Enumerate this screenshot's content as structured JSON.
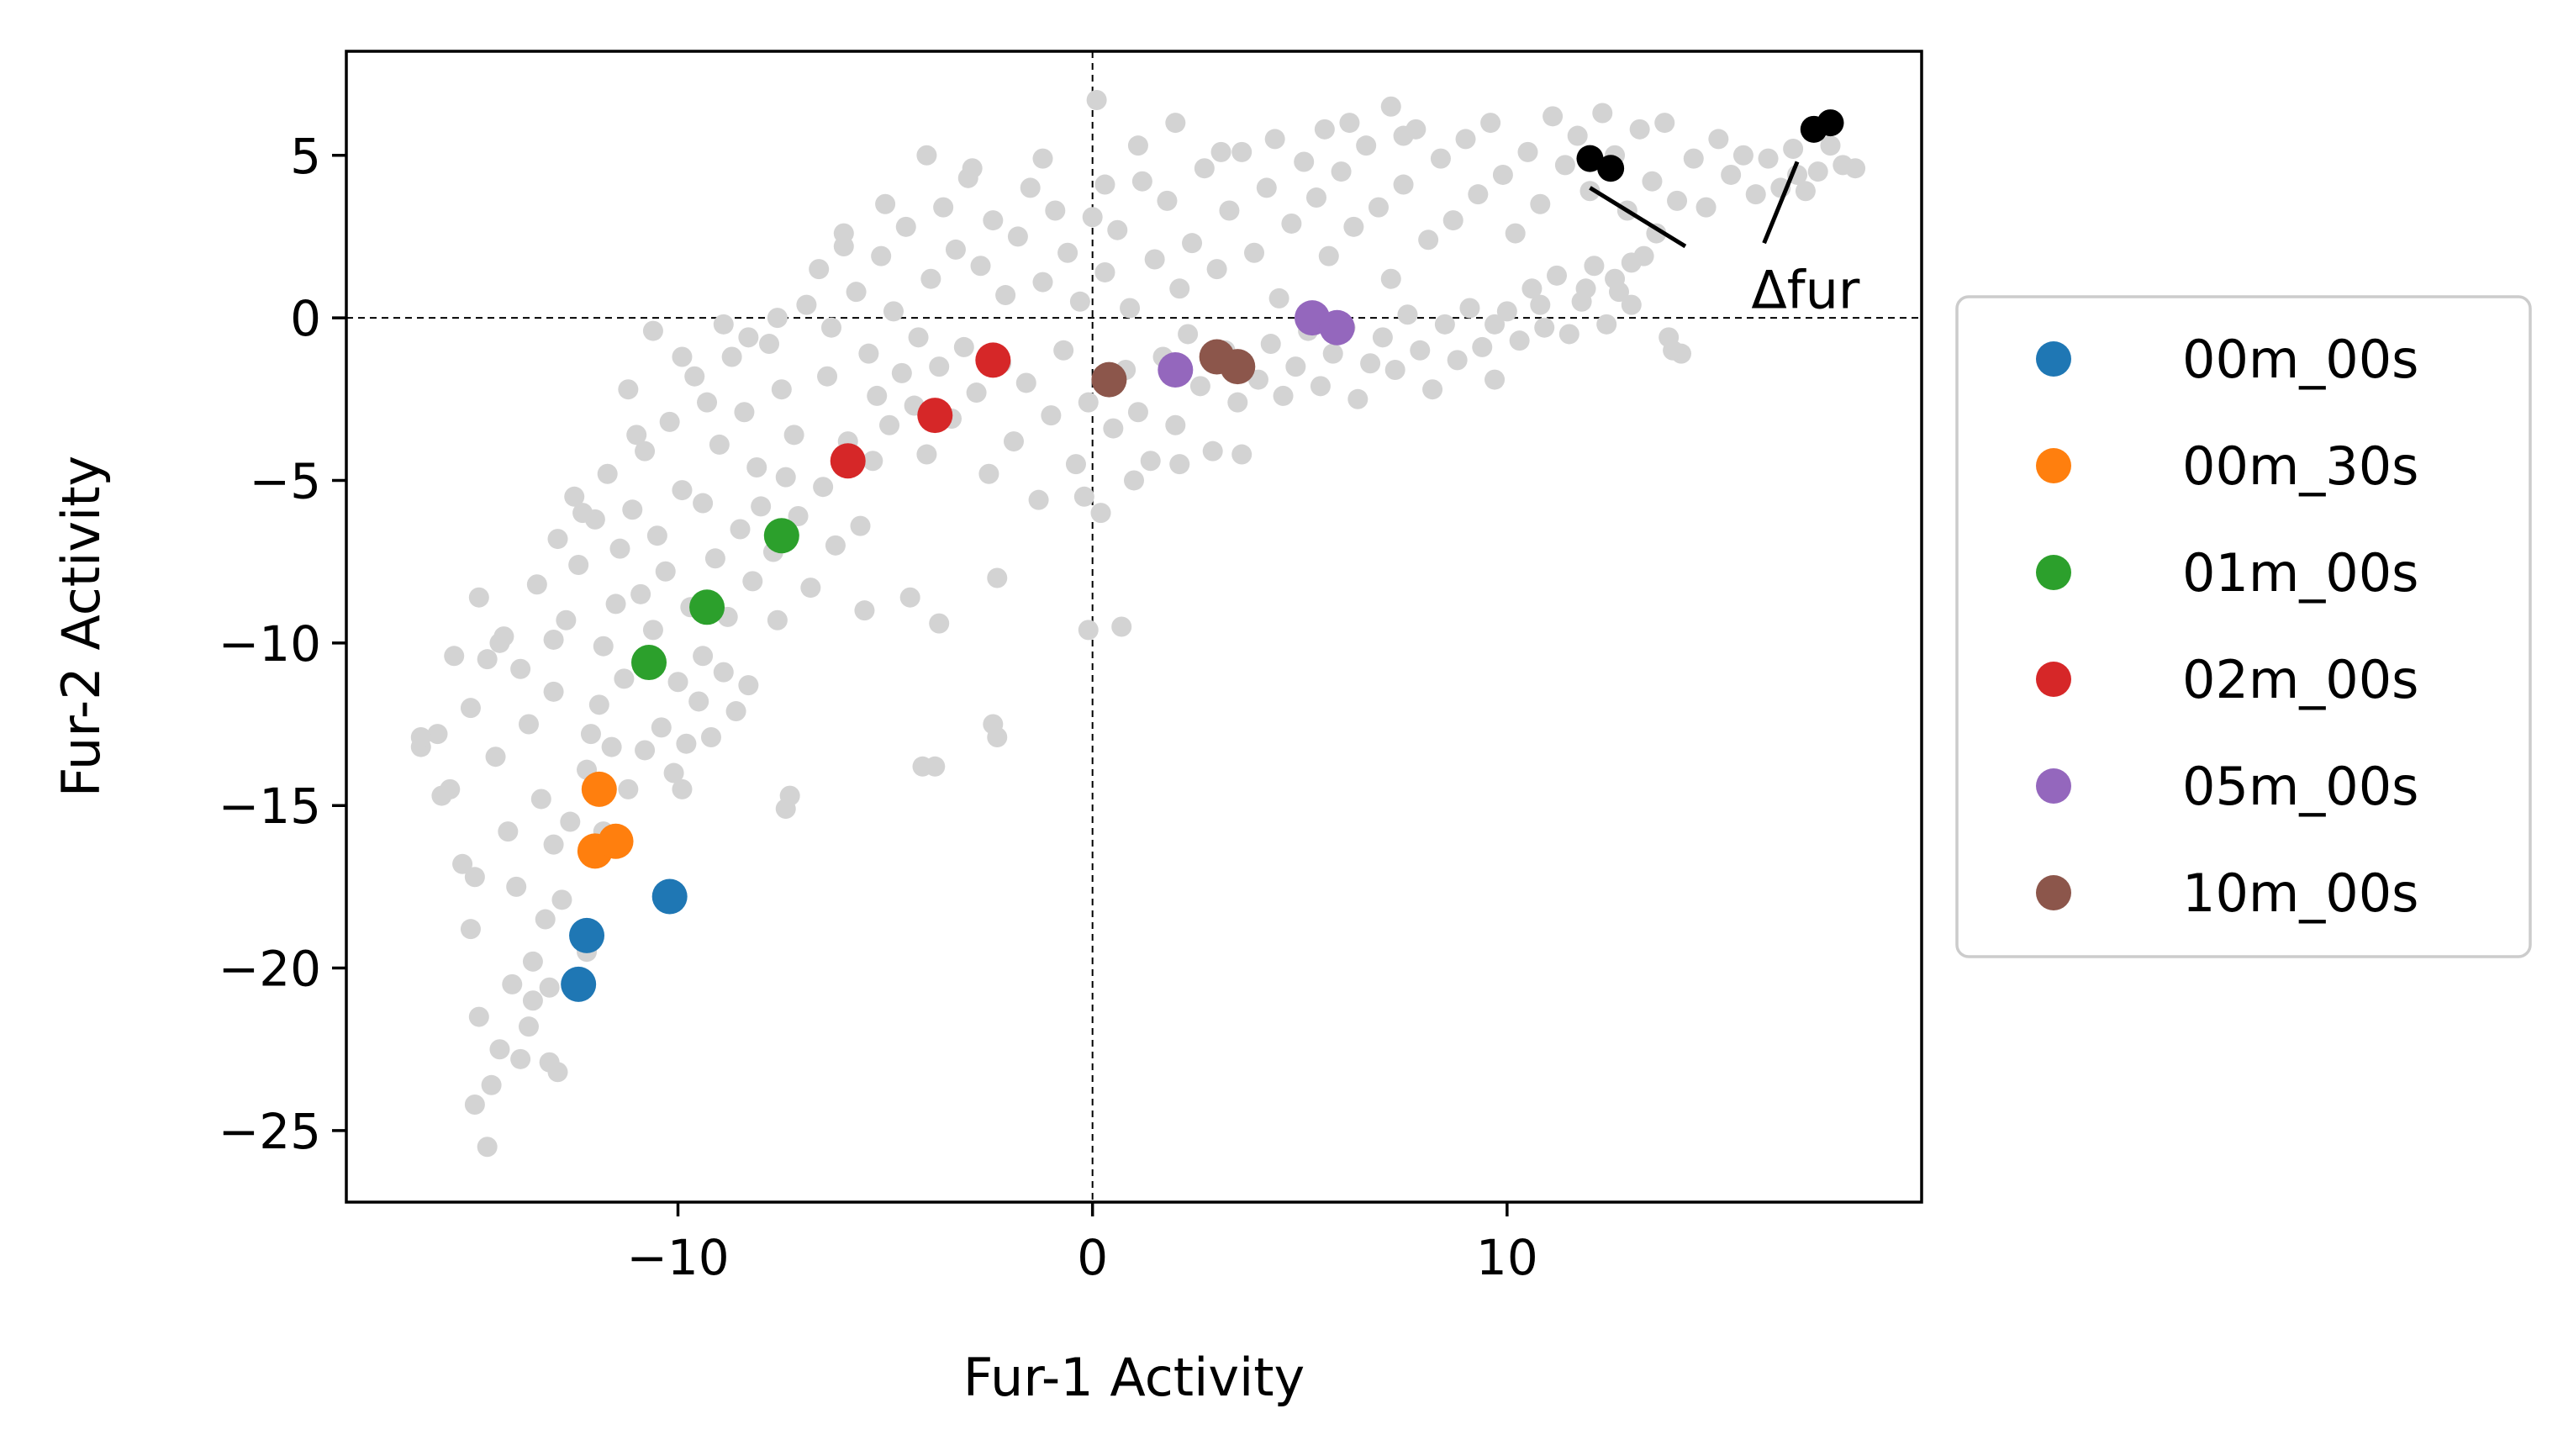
{
  "chart_data": {
    "type": "scatter",
    "title": "",
    "xlabel": "Fur-1 Activity",
    "ylabel": "Fur-2 Activity",
    "xlim": [
      -18,
      20
    ],
    "ylim": [
      -27.2,
      8.2
    ],
    "x_ticks": [
      -10,
      0,
      10
    ],
    "y_ticks": [
      5,
      0,
      -5,
      -10,
      -15,
      -20,
      -25
    ],
    "x_tick_labels": [
      "−10",
      "0",
      "10"
    ],
    "y_tick_labels": [
      "5",
      "0",
      "−5",
      "−10",
      "−15",
      "−20",
      "−25"
    ],
    "reference_lines": {
      "x": 0,
      "y": 0,
      "style": "dashed"
    },
    "grid": false,
    "legend_position": "right",
    "background": {
      "color": "#d3d3d3",
      "points": [
        [
          -16.2,
          -13.2
        ],
        [
          -15.8,
          -12.8
        ],
        [
          -15.5,
          -14.5
        ],
        [
          -15.2,
          -16.8
        ],
        [
          -15.0,
          -18.8
        ],
        [
          -14.8,
          -21.5
        ],
        [
          -14.5,
          -23.6
        ],
        [
          -14.3,
          -22.5
        ],
        [
          -14.0,
          -20.5
        ],
        [
          -13.8,
          -22.8
        ],
        [
          -13.5,
          -19.8
        ],
        [
          -13.2,
          -18.5
        ],
        [
          -15.0,
          -12.0
        ],
        [
          -14.6,
          -10.5
        ],
        [
          -14.4,
          -13.5
        ],
        [
          -14.1,
          -15.8
        ],
        [
          -13.9,
          -17.5
        ],
        [
          -13.6,
          -12.5
        ],
        [
          -13.3,
          -14.8
        ],
        [
          -13.0,
          -16.2
        ],
        [
          -14.8,
          -8.6
        ],
        [
          -14.2,
          -9.8
        ],
        [
          -13.8,
          -10.8
        ],
        [
          -13.4,
          -8.2
        ],
        [
          -13.0,
          -11.5
        ],
        [
          -12.7,
          -9.3
        ],
        [
          -12.4,
          -7.6
        ],
        [
          -12.1,
          -12.8
        ],
        [
          -11.8,
          -10.1
        ],
        [
          -11.5,
          -8.8
        ],
        [
          -14.6,
          -25.5
        ],
        [
          -14.9,
          -24.2
        ],
        [
          -13.6,
          -21.8
        ],
        [
          -13.1,
          -20.6
        ],
        [
          -12.8,
          -17.9
        ],
        [
          -12.6,
          -15.5
        ],
        [
          -12.2,
          -13.9
        ],
        [
          -11.9,
          -11.9
        ],
        [
          -11.6,
          -13.2
        ],
        [
          -11.3,
          -11.1
        ],
        [
          -12.9,
          -6.8
        ],
        [
          -12.5,
          -5.5
        ],
        [
          -12.0,
          -6.2
        ],
        [
          -11.7,
          -4.8
        ],
        [
          -11.4,
          -7.1
        ],
        [
          -11.1,
          -5.9
        ],
        [
          -10.8,
          -4.1
        ],
        [
          -10.5,
          -6.7
        ],
        [
          -10.2,
          -3.2
        ],
        [
          -9.9,
          -5.3
        ],
        [
          -10.9,
          -8.5
        ],
        [
          -10.6,
          -9.6
        ],
        [
          -10.3,
          -7.8
        ],
        [
          -10.0,
          -11.2
        ],
        [
          -9.7,
          -8.9
        ],
        [
          -9.4,
          -10.4
        ],
        [
          -9.1,
          -7.4
        ],
        [
          -8.8,
          -9.2
        ],
        [
          -8.5,
          -6.5
        ],
        [
          -8.2,
          -8.1
        ],
        [
          -11.2,
          -14.5
        ],
        [
          -10.8,
          -13.3
        ],
        [
          -10.4,
          -12.6
        ],
        [
          -10.1,
          -14.0
        ],
        [
          -9.8,
          -13.1
        ],
        [
          -9.5,
          -11.8
        ],
        [
          -9.2,
          -12.9
        ],
        [
          -8.9,
          -10.9
        ],
        [
          -8.6,
          -12.1
        ],
        [
          -8.3,
          -11.3
        ],
        [
          -9.6,
          -1.8
        ],
        [
          -9.3,
          -2.6
        ],
        [
          -9.0,
          -3.9
        ],
        [
          -8.7,
          -1.2
        ],
        [
          -8.4,
          -2.9
        ],
        [
          -8.1,
          -4.6
        ],
        [
          -7.8,
          -0.8
        ],
        [
          -7.5,
          -2.2
        ],
        [
          -7.2,
          -3.6
        ],
        [
          -6.9,
          0.4
        ],
        [
          -8.0,
          -5.8
        ],
        [
          -7.7,
          -7.2
        ],
        [
          -7.4,
          -4.9
        ],
        [
          -7.1,
          -6.1
        ],
        [
          -6.8,
          -8.3
        ],
        [
          -6.5,
          -5.2
        ],
        [
          -6.2,
          -7.0
        ],
        [
          -5.9,
          -3.8
        ],
        [
          -5.6,
          -6.4
        ],
        [
          -5.3,
          -4.4
        ],
        [
          -6.6,
          1.5
        ],
        [
          -6.3,
          -0.3
        ],
        [
          -6.0,
          2.2
        ],
        [
          -5.7,
          0.8
        ],
        [
          -5.4,
          -1.1
        ],
        [
          -5.1,
          1.9
        ],
        [
          -4.8,
          0.2
        ],
        [
          -4.5,
          2.8
        ],
        [
          -4.2,
          -0.6
        ],
        [
          -3.9,
          1.2
        ],
        [
          -5.2,
          -2.4
        ],
        [
          -4.9,
          -3.3
        ],
        [
          -4.6,
          -1.7
        ],
        [
          -4.3,
          -2.7
        ],
        [
          -4.0,
          -4.2
        ],
        [
          -3.7,
          -1.5
        ],
        [
          -3.4,
          -3.1
        ],
        [
          -3.1,
          -0.9
        ],
        [
          -2.8,
          -2.3
        ],
        [
          -2.5,
          -4.8
        ],
        [
          -3.6,
          3.4
        ],
        [
          -3.3,
          2.1
        ],
        [
          -3.0,
          4.3
        ],
        [
          -2.7,
          1.6
        ],
        [
          -2.4,
          3.0
        ],
        [
          -2.1,
          0.7
        ],
        [
          -1.8,
          2.5
        ],
        [
          -1.5,
          4.0
        ],
        [
          -1.2,
          1.1
        ],
        [
          -0.9,
          3.3
        ],
        [
          -2.2,
          -1.4
        ],
        [
          -1.9,
          -3.8
        ],
        [
          -1.6,
          -2.0
        ],
        [
          -1.3,
          -5.6
        ],
        [
          -1.0,
          -3.0
        ],
        [
          -0.7,
          -1.0
        ],
        [
          -0.4,
          -4.5
        ],
        [
          -0.1,
          -2.6
        ],
        [
          0.2,
          -6.0
        ],
        [
          0.5,
          -3.4
        ],
        [
          -0.6,
          2.0
        ],
        [
          -0.3,
          0.5
        ],
        [
          0.0,
          3.1
        ],
        [
          0.3,
          1.4
        ],
        [
          0.6,
          2.7
        ],
        [
          0.9,
          0.3
        ],
        [
          1.2,
          4.2
        ],
        [
          1.5,
          1.8
        ],
        [
          1.8,
          3.6
        ],
        [
          2.1,
          0.9
        ],
        [
          0.8,
          -1.6
        ],
        [
          1.1,
          -2.9
        ],
        [
          1.4,
          -4.4
        ],
        [
          1.7,
          -1.2
        ],
        [
          2.0,
          -3.3
        ],
        [
          2.3,
          -0.5
        ],
        [
          2.6,
          -2.1
        ],
        [
          2.9,
          -4.1
        ],
        [
          3.2,
          -1.0
        ],
        [
          3.5,
          -2.6
        ],
        [
          2.4,
          2.3
        ],
        [
          2.7,
          4.6
        ],
        [
          3.0,
          1.5
        ],
        [
          3.3,
          3.3
        ],
        [
          3.6,
          5.1
        ],
        [
          3.9,
          2.0
        ],
        [
          4.2,
          4.0
        ],
        [
          4.5,
          0.6
        ],
        [
          4.8,
          2.9
        ],
        [
          5.1,
          4.8
        ],
        [
          4.0,
          -1.9
        ],
        [
          4.3,
          -0.8
        ],
        [
          4.6,
          -2.4
        ],
        [
          4.9,
          -1.5
        ],
        [
          5.2,
          -0.4
        ],
        [
          5.5,
          -2.1
        ],
        [
          5.8,
          -1.1
        ],
        [
          6.1,
          -0.3
        ],
        [
          6.4,
          -2.5
        ],
        [
          6.7,
          -1.4
        ],
        [
          5.4,
          3.7
        ],
        [
          5.7,
          1.9
        ],
        [
          6.0,
          4.5
        ],
        [
          6.3,
          2.8
        ],
        [
          6.6,
          5.3
        ],
        [
          6.9,
          3.4
        ],
        [
          7.2,
          1.2
        ],
        [
          7.5,
          4.1
        ],
        [
          7.8,
          5.8
        ],
        [
          8.1,
          2.4
        ],
        [
          7.0,
          -0.6
        ],
        [
          7.3,
          -1.6
        ],
        [
          7.6,
          0.1
        ],
        [
          7.9,
          -1.0
        ],
        [
          8.2,
          -2.2
        ],
        [
          8.5,
          -0.2
        ],
        [
          8.8,
          -1.3
        ],
        [
          9.1,
          0.3
        ],
        [
          9.4,
          -0.9
        ],
        [
          9.7,
          -1.9
        ],
        [
          8.4,
          4.9
        ],
        [
          8.7,
          3.0
        ],
        [
          9.0,
          5.5
        ],
        [
          9.3,
          3.8
        ],
        [
          9.6,
          6.0
        ],
        [
          9.9,
          4.4
        ],
        [
          10.2,
          2.6
        ],
        [
          10.5,
          5.1
        ],
        [
          10.8,
          3.5
        ],
        [
          11.1,
          6.2
        ],
        [
          10.0,
          0.2
        ],
        [
          10.3,
          -0.7
        ],
        [
          10.6,
          0.9
        ],
        [
          10.9,
          -0.3
        ],
        [
          11.2,
          1.3
        ],
        [
          11.5,
          -0.5
        ],
        [
          11.8,
          0.5
        ],
        [
          12.1,
          1.6
        ],
        [
          12.4,
          -0.2
        ],
        [
          12.7,
          0.8
        ],
        [
          11.4,
          4.7
        ],
        [
          11.7,
          5.6
        ],
        [
          12.0,
          3.9
        ],
        [
          12.3,
          6.3
        ],
        [
          12.6,
          5.0
        ],
        [
          12.9,
          3.3
        ],
        [
          13.2,
          5.8
        ],
        [
          13.5,
          4.2
        ],
        [
          13.8,
          6.0
        ],
        [
          14.1,
          3.6
        ],
        [
          13.0,
          0.4
        ],
        [
          13.3,
          1.9
        ],
        [
          13.6,
          2.6
        ],
        [
          13.9,
          -0.6
        ],
        [
          14.2,
          -1.1
        ],
        [
          14.5,
          4.9
        ],
        [
          14.8,
          3.4
        ],
        [
          15.1,
          5.5
        ],
        [
          15.4,
          4.4
        ],
        [
          15.7,
          5.0
        ],
        [
          16.0,
          3.8
        ],
        [
          16.3,
          4.9
        ],
        [
          16.6,
          4.0
        ],
        [
          16.9,
          5.2
        ],
        [
          17.2,
          3.9
        ],
        [
          17.5,
          4.5
        ],
        [
          17.8,
          5.3
        ],
        [
          18.1,
          4.7
        ],
        [
          18.4,
          4.6
        ],
        [
          17.0,
          4.4
        ],
        [
          -15.4,
          -10.4
        ],
        [
          -13.0,
          -9.9
        ],
        [
          -12.3,
          -6.0
        ],
        [
          -11.0,
          -3.6
        ],
        [
          -9.4,
          -5.7
        ],
        [
          -8.9,
          -0.2
        ],
        [
          -7.6,
          -9.3
        ],
        [
          -6.4,
          -1.8
        ],
        [
          -5.5,
          -9.0
        ],
        [
          -4.4,
          -8.6
        ],
        [
          -3.7,
          -9.4
        ],
        [
          -2.3,
          -8.0
        ],
        [
          -2.4,
          -12.5
        ],
        [
          -2.3,
          -12.9
        ],
        [
          -3.8,
          -13.8
        ],
        [
          -4.1,
          -13.8
        ],
        [
          -7.3,
          -14.7
        ],
        [
          -7.4,
          -15.1
        ],
        [
          -0.1,
          -9.6
        ],
        [
          0.7,
          -9.5
        ],
        [
          -9.9,
          -14.5
        ],
        [
          -12.2,
          -19.5
        ],
        [
          -13.5,
          -21.0
        ],
        [
          -14.9,
          -17.2
        ],
        [
          -16.2,
          -12.9
        ],
        [
          -11.8,
          -15.8
        ],
        [
          -12.9,
          -23.2
        ],
        [
          -13.1,
          -22.9
        ],
        [
          -15.7,
          -14.7
        ],
        [
          -14.3,
          -10.0
        ],
        [
          -1.2,
          4.9
        ],
        [
          -2.9,
          4.6
        ],
        [
          -4.0,
          5.0
        ],
        [
          -5.0,
          3.5
        ],
        [
          -6.0,
          2.6
        ],
        [
          -7.6,
          0.0
        ],
        [
          -8.3,
          -0.6
        ],
        [
          -9.9,
          -1.2
        ],
        [
          -10.6,
          -0.4
        ],
        [
          -11.2,
          -2.2
        ],
        [
          0.1,
          6.7
        ],
        [
          0.3,
          4.1
        ],
        [
          1.1,
          5.3
        ],
        [
          2.0,
          6.0
        ],
        [
          3.1,
          5.1
        ],
        [
          4.4,
          5.5
        ],
        [
          5.6,
          5.8
        ],
        [
          6.2,
          6.0
        ],
        [
          7.2,
          6.5
        ],
        [
          7.5,
          5.6
        ],
        [
          13.0,
          1.7
        ],
        [
          12.6,
          1.2
        ],
        [
          11.9,
          0.9
        ],
        [
          10.8,
          0.4
        ],
        [
          9.7,
          -0.2
        ],
        [
          14.0,
          -1.0
        ],
        [
          3.6,
          -4.2
        ],
        [
          2.1,
          -4.5
        ],
        [
          1.0,
          -5.0
        ],
        [
          -0.2,
          -5.5
        ]
      ]
    },
    "series": [
      {
        "name": "00m_00s",
        "color": "#1f77b4",
        "x": [
          -12.2,
          -12.4,
          -10.2
        ],
        "y": [
          -19.0,
          -20.5,
          -17.8
        ]
      },
      {
        "name": "00m_30s",
        "color": "#ff7f0e",
        "x": [
          -11.9,
          -12.0,
          -11.5
        ],
        "y": [
          -14.5,
          -16.4,
          -16.1
        ]
      },
      {
        "name": "01m_00s",
        "color": "#2ca02c",
        "x": [
          -7.5,
          -9.3,
          -10.7
        ],
        "y": [
          -6.7,
          -8.9,
          -10.6
        ]
      },
      {
        "name": "02m_00s",
        "color": "#d62728",
        "x": [
          -2.4,
          -3.8,
          -5.9
        ],
        "y": [
          -1.3,
          -3.0,
          -4.4
        ]
      },
      {
        "name": "05m_00s",
        "color": "#9467bd",
        "x": [
          2.0,
          5.3,
          5.9
        ],
        "y": [
          -1.6,
          0.0,
          -0.3
        ]
      },
      {
        "name": "10m_00s",
        "color": "#8c564b",
        "x": [
          0.4,
          3.0,
          3.5
        ],
        "y": [
          -1.9,
          -1.2,
          -1.5
        ]
      }
    ],
    "annotation": {
      "text": "Δfur",
      "color": "#000000",
      "points": [
        [
          12.0,
          4.9
        ],
        [
          12.5,
          4.6
        ],
        [
          17.4,
          5.8
        ],
        [
          17.8,
          6.0
        ]
      ],
      "text_at": [
        17.2,
        0.3
      ],
      "arrow_tips": [
        [
          12.0,
          4.0
        ],
        [
          17.0,
          4.8
        ]
      ],
      "arrow_tails": [
        [
          14.3,
          2.2
        ],
        [
          16.2,
          2.3
        ]
      ]
    }
  }
}
